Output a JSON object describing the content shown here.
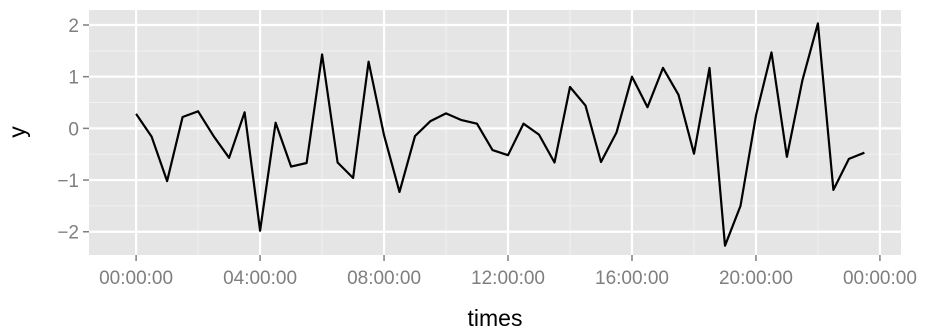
{
  "chart_data": {
    "type": "line",
    "xlabel": "times",
    "ylabel": "y",
    "x_tick_labels": [
      "00:00:00",
      "04:00:00",
      "08:00:00",
      "12:00:00",
      "16:00:00",
      "20:00:00",
      "00:00:00"
    ],
    "x_tick_hours": [
      0,
      4,
      8,
      12,
      16,
      20,
      24
    ],
    "y_ticks": [
      2,
      1,
      0,
      -1,
      -2
    ],
    "y_tick_labels": [
      "2",
      "1",
      "0",
      "−1",
      "−2"
    ],
    "xlim_hours": [
      -1.52,
      24.68
    ],
    "ylim": [
      -2.45,
      2.29
    ],
    "grid": true,
    "series": [
      {
        "color": "#000000",
        "x_hours": [
          0,
          0.5,
          1,
          1.5,
          2,
          2.5,
          3,
          3.5,
          4,
          4.5,
          5,
          5.5,
          6,
          6.5,
          7,
          7.5,
          8,
          8.5,
          9,
          9.5,
          10,
          10.5,
          11,
          11.5,
          12,
          12.5,
          13,
          13.5,
          14,
          14.5,
          15,
          15.5,
          16,
          16.5,
          17,
          17.5,
          18,
          18.5,
          19,
          19.5,
          20,
          20.5,
          21,
          21.5,
          22,
          22.5,
          23,
          23.5
        ],
        "values": [
          0.28,
          -0.16,
          -1.02,
          0.22,
          0.33,
          -0.15,
          -0.57,
          0.31,
          -1.98,
          0.11,
          -0.74,
          -0.67,
          1.43,
          -0.66,
          -0.96,
          1.29,
          -0.13,
          -1.23,
          -0.15,
          0.14,
          0.29,
          0.16,
          0.09,
          -0.42,
          -0.52,
          0.09,
          -0.12,
          -0.66,
          0.8,
          0.44,
          -0.65,
          -0.08,
          1.0,
          0.41,
          1.17,
          0.65,
          -0.49,
          1.17,
          -2.27,
          -1.5,
          0.25,
          1.47,
          -0.55,
          0.93,
          2.03,
          -1.19,
          -0.59,
          -0.47
        ]
      }
    ]
  }
}
